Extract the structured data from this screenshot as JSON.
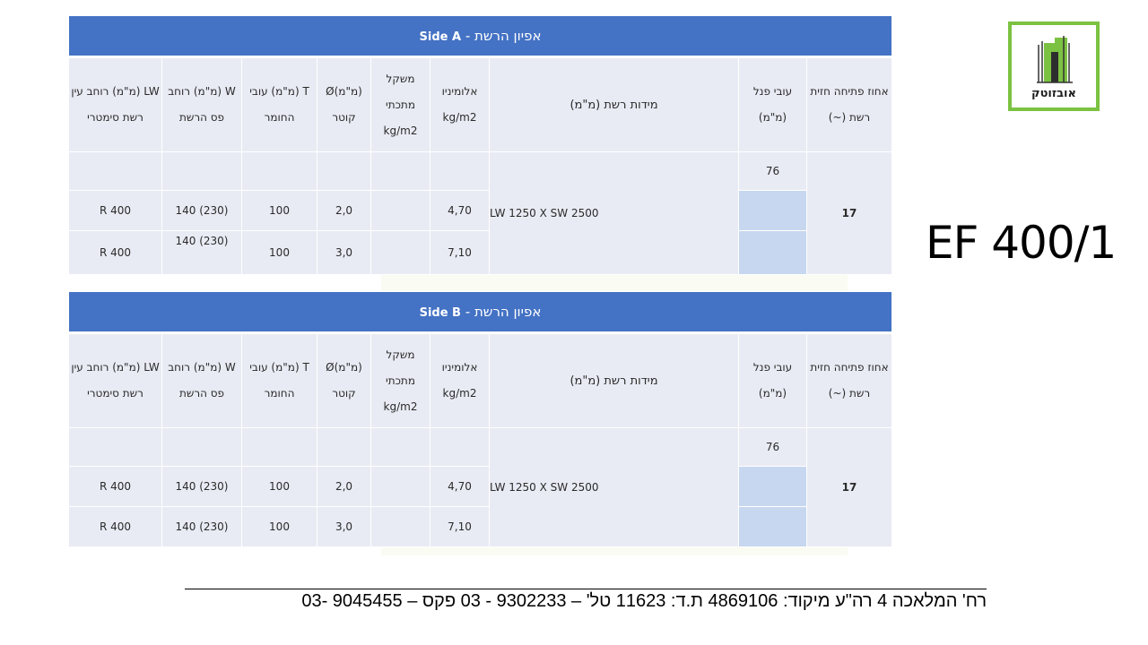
{
  "product_code": "EF 400/1",
  "logo_text": "אובזוטק",
  "footer_text": "רח' המלאכה 4 רה\"ע מיקוד: 4869106 ת.ד: 11623 טל' – 9302233 - 03 פקס – 9045455 -03",
  "headers": {
    "open_area": "אחוז פתיחה חזית רשת (~)",
    "panel_thickness": "עובי פנל (מ\"מ)",
    "mesh_dims": "מידות רשת (מ\"מ)",
    "aluminum": "אלומיניו kg/m2",
    "metal_weight": "משקל מתכתי kg/m2",
    "diameter": "(מ\"מ)Ø קוטר",
    "thickness": "T (מ\"מ) עובי החומר",
    "strip_width": "W (מ\"מ) רוחב פס הרשת",
    "eye_width": "LW (מ\"מ) רוחב עין רשת סימטרי"
  },
  "tables": [
    {
      "title_side": "Side A",
      "title_sep": "-",
      "title_he": "אפיון הרשת",
      "open_area": "17",
      "panel_thickness": "76",
      "mesh_dims": "LW 1250 X SW 2500",
      "rows": [
        {
          "aluminum": "4,70",
          "metal_weight": "",
          "diameter": "2,0",
          "thickness": "100",
          "strip_width": "140 (230)",
          "eye_width": "R 400"
        },
        {
          "aluminum": "7,10",
          "metal_weight": "",
          "diameter": "3,0",
          "thickness": "100",
          "strip_width": "140 (230)",
          "eye_width": "R 400"
        }
      ]
    },
    {
      "title_side": "Side B",
      "title_sep": "-",
      "title_he": "אפיון הרשת",
      "open_area": "17",
      "panel_thickness": "76",
      "mesh_dims": "LW 1250 X SW 2500",
      "rows": [
        {
          "aluminum": "4,70",
          "metal_weight": "",
          "diameter": "2,0",
          "thickness": "100",
          "strip_width": "140 (230)",
          "eye_width": "R 400"
        },
        {
          "aluminum": "7,10",
          "metal_weight": "",
          "diameter": "3,0",
          "thickness": "100",
          "strip_width": "140 (230)",
          "eye_width": "R 400"
        }
      ]
    }
  ],
  "colors": {
    "header_blue": "#4472c4",
    "cell_light": "#e9ebf4",
    "cell_blue": "#c7d7f0",
    "logo_green": "#7cc242"
  }
}
